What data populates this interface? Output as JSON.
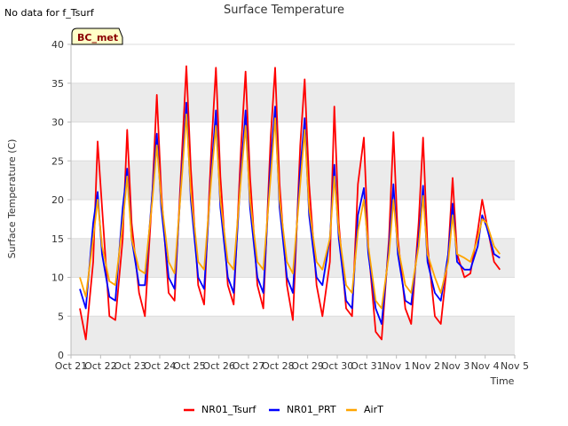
{
  "corner_note": "No data for f_Tsurf",
  "badge": "BC_met",
  "colors": {
    "band": "#ebebeb",
    "grid": "#dddddd",
    "axis": "#bbbbbb",
    "badge_bg": "#ffffc8"
  },
  "chart_data": {
    "type": "line",
    "title": "Surface Temperature",
    "xlabel": "Time",
    "ylabel": "Surface Temperature (C)",
    "xlim": [
      0,
      15
    ],
    "ylim": [
      0,
      40
    ],
    "x_tick_labels": [
      "Oct 21",
      "Oct 22",
      "Oct 23",
      "Oct 24",
      "Oct 25",
      "Oct 26",
      "Oct 27",
      "Oct 28",
      "Oct 29",
      "Oct 30",
      "Oct 31",
      "Nov 1",
      "Nov 2",
      "Nov 3",
      "Nov 4",
      "Nov 5"
    ],
    "y_ticks": [
      0,
      5,
      10,
      15,
      20,
      25,
      30,
      35,
      40
    ],
    "grid": true,
    "legend_position": "bottom-center",
    "series": [
      {
        "name": "NR01_Tsurf",
        "color": "#ff0000",
        "x": [
          0.3,
          0.5,
          0.75,
          0.9,
          1.05,
          1.3,
          1.5,
          1.75,
          1.9,
          2.05,
          2.3,
          2.5,
          2.75,
          2.9,
          3.05,
          3.3,
          3.5,
          3.75,
          3.9,
          4.05,
          4.3,
          4.5,
          4.75,
          4.9,
          5.05,
          5.3,
          5.5,
          5.75,
          5.9,
          6.05,
          6.3,
          6.5,
          6.75,
          6.9,
          7.05,
          7.3,
          7.5,
          7.75,
          7.9,
          8.05,
          8.3,
          8.5,
          8.75,
          8.9,
          9.05,
          9.3,
          9.5,
          9.7,
          9.9,
          10.05,
          10.3,
          10.5,
          10.75,
          10.9,
          11.05,
          11.3,
          11.5,
          11.75,
          11.9,
          12.05,
          12.3,
          12.5,
          12.75,
          12.9,
          13.05,
          13.3,
          13.5,
          13.75,
          13.9,
          14.05,
          14.3,
          14.5
        ],
        "y": [
          6,
          2,
          12,
          27.5,
          19,
          5,
          4.5,
          15,
          29,
          17,
          8,
          5,
          21,
          33.5,
          21,
          8,
          7,
          26,
          37.2,
          24,
          9,
          6.5,
          27,
          37,
          23,
          9,
          6.5,
          27,
          36.5,
          23,
          9,
          6,
          28,
          37,
          22,
          9,
          4.5,
          27,
          35.5,
          22,
          9,
          5,
          12,
          32,
          17,
          6,
          5,
          22,
          28,
          14,
          3,
          2,
          15,
          28.7,
          15,
          6,
          4,
          17,
          28,
          14,
          5,
          4,
          13,
          22.8,
          13,
          10,
          10.5,
          16,
          20,
          17,
          12,
          11
        ]
      },
      {
        "name": "NR01_PRT",
        "color": "#0000ff",
        "x": [
          0.3,
          0.5,
          0.75,
          0.9,
          1.05,
          1.3,
          1.5,
          1.75,
          1.9,
          2.05,
          2.3,
          2.5,
          2.75,
          2.9,
          3.05,
          3.3,
          3.5,
          3.75,
          3.9,
          4.05,
          4.3,
          4.5,
          4.75,
          4.9,
          5.05,
          5.3,
          5.5,
          5.75,
          5.9,
          6.05,
          6.3,
          6.5,
          6.75,
          6.9,
          7.05,
          7.3,
          7.5,
          7.75,
          7.9,
          8.05,
          8.3,
          8.5,
          8.75,
          8.9,
          9.05,
          9.3,
          9.5,
          9.7,
          9.9,
          10.05,
          10.3,
          10.5,
          10.75,
          10.9,
          11.05,
          11.3,
          11.5,
          11.75,
          11.9,
          12.05,
          12.3,
          12.5,
          12.75,
          12.9,
          13.05,
          13.3,
          13.5,
          13.75,
          13.9,
          14.05,
          14.3,
          14.5
        ],
        "y": [
          8.5,
          6,
          17,
          21,
          13,
          7.5,
          7,
          19,
          24,
          15,
          9,
          9,
          21,
          28.5,
          19,
          10,
          8.5,
          24,
          32.5,
          20,
          10,
          8.5,
          24,
          31.5,
          19,
          10,
          8,
          24,
          31.5,
          19,
          10,
          8,
          25,
          32,
          19,
          10,
          8,
          24,
          30.5,
          18,
          10,
          9,
          15,
          24.5,
          15,
          7,
          6,
          18,
          21.5,
          13,
          6,
          4,
          14,
          22,
          13,
          7,
          6.5,
          15,
          21.8,
          12,
          8,
          7,
          13,
          19.5,
          12,
          11,
          11,
          14,
          18,
          16.5,
          13,
          12.5
        ]
      },
      {
        "name": "AirT",
        "color": "#ffa500",
        "x": [
          0.3,
          0.5,
          0.75,
          0.9,
          1.05,
          1.3,
          1.5,
          1.75,
          1.9,
          2.05,
          2.3,
          2.5,
          2.75,
          2.9,
          3.05,
          3.3,
          3.5,
          3.75,
          3.9,
          4.05,
          4.3,
          4.5,
          4.75,
          4.9,
          5.05,
          5.3,
          5.5,
          5.75,
          5.9,
          6.05,
          6.3,
          6.5,
          6.75,
          6.9,
          7.05,
          7.3,
          7.5,
          7.75,
          7.9,
          8.05,
          8.3,
          8.5,
          8.75,
          8.9,
          9.05,
          9.3,
          9.5,
          9.7,
          9.9,
          10.05,
          10.3,
          10.5,
          10.75,
          10.9,
          11.05,
          11.3,
          11.5,
          11.75,
          11.9,
          12.05,
          12.3,
          12.5,
          12.75,
          12.9,
          13.05,
          13.3,
          13.5,
          13.75,
          13.9,
          14.05,
          14.3,
          14.5
        ],
        "y": [
          10,
          7.5,
          15,
          20,
          14,
          9.5,
          9,
          17,
          23,
          15,
          11,
          10.5,
          20,
          27,
          20,
          12,
          10.5,
          23,
          31,
          21,
          12,
          11,
          23,
          29.5,
          20,
          12,
          11,
          23,
          29.5,
          20,
          12,
          11,
          23,
          30.5,
          20,
          12,
          10.5,
          22,
          29,
          19,
          12,
          11,
          15,
          23,
          16,
          9,
          8,
          16,
          20,
          14,
          7,
          6,
          13,
          20,
          14,
          9,
          8,
          14,
          20.5,
          13,
          10,
          8,
          12,
          18,
          13,
          12.5,
          12,
          15,
          17.5,
          17,
          14,
          13
        ]
      }
    ]
  }
}
